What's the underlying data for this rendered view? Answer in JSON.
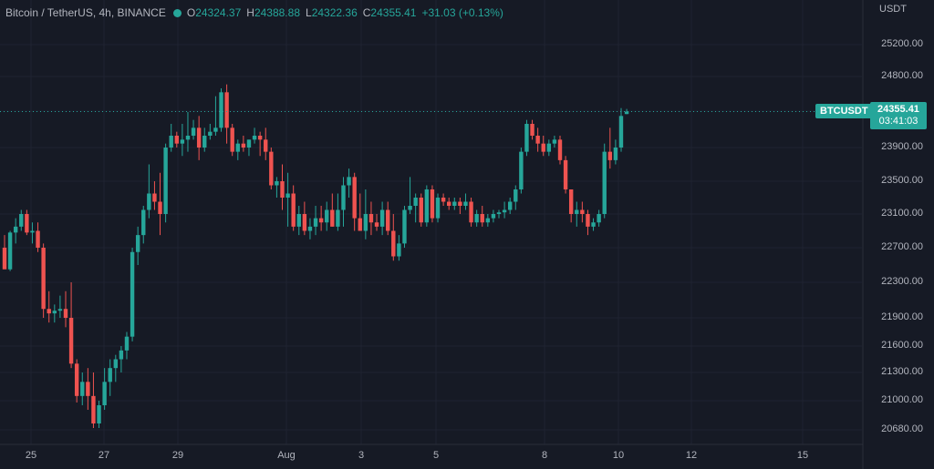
{
  "legend": {
    "symbol": "Bitcoin / TetherUS, 4h, BINANCE",
    "status_color": "#26a69a",
    "o_label": "O",
    "o_value": "24324.37",
    "h_label": "H",
    "h_value": "24388.88",
    "l_label": "L",
    "l_value": "24322.36",
    "c_label": "C",
    "c_value": "24355.41",
    "change": "+31.03 (+0.13%)"
  },
  "currency_label": "USDT",
  "ticker_tag": "BTCUSDT",
  "last_price": {
    "price": "24355.41",
    "countdown": "03:41:03"
  },
  "colors": {
    "up": "#26a69a",
    "down": "#ef5350",
    "background": "#161a25",
    "grid": "#1f2331"
  },
  "y_ticks": [
    "25200.00",
    "24800.00",
    "24355.41",
    "23900.00",
    "23500.00",
    "23100.00",
    "22700.00",
    "22300.00",
    "21900.00",
    "21600.00",
    "21300.00",
    "21000.00",
    "20680.00"
  ],
  "x_ticks": [
    "25",
    "27",
    "29",
    "Aug",
    "3",
    "5",
    "8",
    "10",
    "12",
    "15"
  ],
  "chart_data": {
    "type": "candlestick",
    "symbol": "BTCUSDT",
    "interval": "4h",
    "exchange": "BINANCE",
    "y_axis": "price (USDT)",
    "ylim": [
      20550,
      25500
    ],
    "last_price": 24355.41,
    "candles_ohlc": [
      [
        22700,
        22850,
        22500,
        22450
      ],
      [
        22450,
        22900,
        22430,
        22880
      ],
      [
        22880,
        23050,
        22750,
        22950
      ],
      [
        22950,
        23150,
        22900,
        23100
      ],
      [
        23100,
        23150,
        22850,
        22880
      ],
      [
        22880,
        23000,
        22750,
        22900
      ],
      [
        22900,
        23000,
        22650,
        22700
      ],
      [
        22700,
        22750,
        21900,
        22000
      ],
      [
        22000,
        22200,
        21850,
        21950
      ],
      [
        21950,
        22050,
        21850,
        21980
      ],
      [
        21980,
        22150,
        21900,
        22000
      ],
      [
        22000,
        22200,
        21800,
        21900
      ],
      [
        21900,
        22300,
        21350,
        21400
      ],
      [
        21400,
        21450,
        20980,
        21050
      ],
      [
        21050,
        21300,
        20950,
        21200
      ],
      [
        21200,
        21350,
        20900,
        21050
      ],
      [
        21050,
        21300,
        20700,
        20750
      ],
      [
        20750,
        21000,
        20700,
        20950
      ],
      [
        20950,
        21350,
        20900,
        21200
      ],
      [
        21200,
        21450,
        21050,
        21350
      ],
      [
        21350,
        21500,
        21200,
        21450
      ],
      [
        21450,
        21600,
        21300,
        21550
      ],
      [
        21550,
        21750,
        21450,
        21700
      ],
      [
        21700,
        22700,
        21650,
        22650
      ],
      [
        22650,
        22950,
        22500,
        22850
      ],
      [
        22850,
        23200,
        22750,
        23150
      ],
      [
        23150,
        23700,
        23050,
        23350
      ],
      [
        23350,
        23500,
        23150,
        23250
      ],
      [
        23250,
        23600,
        22850,
        23100
      ],
      [
        23100,
        23950,
        23000,
        23900
      ],
      [
        23900,
        24200,
        23850,
        24050
      ],
      [
        24050,
        24100,
        23900,
        23950
      ],
      [
        23950,
        24200,
        23800,
        24000
      ],
      [
        24000,
        24350,
        23850,
        24050
      ],
      [
        24050,
        24250,
        24000,
        24150
      ],
      [
        24150,
        24300,
        23750,
        23900
      ],
      [
        23900,
        24150,
        23850,
        24050
      ],
      [
        24050,
        24200,
        24000,
        24100
      ],
      [
        24100,
        24550,
        24050,
        24150
      ],
      [
        24150,
        24650,
        24100,
        24600
      ],
      [
        24600,
        24700,
        23950,
        24150
      ],
      [
        24150,
        24200,
        23800,
        23850
      ],
      [
        23850,
        24000,
        23750,
        23950
      ],
      [
        23950,
        24050,
        23850,
        23900
      ],
      [
        23900,
        24000,
        23800,
        24000
      ],
      [
        24000,
        24150,
        23950,
        24050
      ],
      [
        24050,
        24100,
        23800,
        24000
      ],
      [
        24000,
        24150,
        23750,
        23850
      ],
      [
        23850,
        23900,
        23400,
        23450
      ],
      [
        23450,
        23550,
        23300,
        23500
      ],
      [
        23500,
        23700,
        23150,
        23300
      ],
      [
        23300,
        23600,
        22950,
        23350
      ],
      [
        23350,
        23450,
        22900,
        22950
      ],
      [
        22950,
        23200,
        22850,
        23100
      ],
      [
        23100,
        23250,
        22850,
        22900
      ],
      [
        22900,
        23050,
        22800,
        22950
      ],
      [
        22950,
        23200,
        22850,
        23050
      ],
      [
        23050,
        23200,
        22900,
        23000
      ],
      [
        23000,
        23250,
        22900,
        23150
      ],
      [
        23150,
        23350,
        22950,
        22950
      ],
      [
        22950,
        23350,
        22900,
        23150
      ],
      [
        23150,
        23550,
        22950,
        23450
      ],
      [
        23450,
        23650,
        23300,
        23550
      ],
      [
        23550,
        23600,
        22900,
        23050
      ],
      [
        23050,
        23350,
        22950,
        22900
      ],
      [
        22900,
        23400,
        22800,
        23100
      ],
      [
        23100,
        23250,
        22850,
        23000
      ],
      [
        23000,
        23100,
        22900,
        22950
      ],
      [
        22950,
        23250,
        22850,
        23150
      ],
      [
        23150,
        23250,
        22850,
        22900
      ],
      [
        22900,
        23100,
        22550,
        22600
      ],
      [
        22600,
        22850,
        22550,
        22750
      ],
      [
        22750,
        23200,
        22700,
        23150
      ],
      [
        23150,
        23550,
        23100,
        23200
      ],
      [
        23200,
        23350,
        23000,
        23300
      ],
      [
        23300,
        23350,
        22950,
        23000
      ],
      [
        23000,
        23450,
        22950,
        23400
      ],
      [
        23400,
        23450,
        23000,
        23050
      ],
      [
        23050,
        23350,
        23000,
        23300
      ],
      [
        23300,
        23350,
        23200,
        23250
      ],
      [
        23250,
        23300,
        23150,
        23200
      ],
      [
        23200,
        23300,
        23150,
        23250
      ],
      [
        23250,
        23300,
        23100,
        23200
      ],
      [
        23200,
        23350,
        23150,
        23250
      ],
      [
        23250,
        23300,
        22950,
        23000
      ],
      [
        23000,
        23150,
        22950,
        23100
      ],
      [
        23100,
        23200,
        22950,
        23000
      ],
      [
        23000,
        23100,
        22950,
        23050
      ],
      [
        23050,
        23150,
        23000,
        23100
      ],
      [
        23100,
        23150,
        23050,
        23120
      ],
      [
        23120,
        23250,
        23050,
        23150
      ],
      [
        23150,
        23300,
        23100,
        23250
      ],
      [
        23250,
        23450,
        23150,
        23400
      ],
      [
        23400,
        23900,
        23350,
        23850
      ],
      [
        23850,
        24250,
        23800,
        24200
      ],
      [
        24200,
        24250,
        24000,
        24050
      ],
      [
        24050,
        24150,
        23850,
        23950
      ],
      [
        23950,
        24050,
        23800,
        23850
      ],
      [
        23850,
        24000,
        23800,
        23950
      ],
      [
        23950,
        24050,
        23900,
        24000
      ],
      [
        24000,
        24050,
        23700,
        23750
      ],
      [
        23750,
        23800,
        23350,
        23400
      ],
      [
        23400,
        23400,
        23000,
        23100
      ],
      [
        23100,
        23250,
        22950,
        23150
      ],
      [
        23150,
        23250,
        23000,
        23100
      ],
      [
        23100,
        23150,
        22850,
        22950
      ],
      [
        22950,
        23050,
        22900,
        23000
      ],
      [
        23000,
        23150,
        22950,
        23100
      ],
      [
        23100,
        23950,
        23050,
        23850
      ],
      [
        23850,
        24150,
        23650,
        23750
      ],
      [
        23750,
        24000,
        23700,
        23900
      ],
      [
        23900,
        24400,
        23850,
        24300
      ],
      [
        24324.37,
        24388.88,
        24322.36,
        24355.41
      ]
    ]
  }
}
